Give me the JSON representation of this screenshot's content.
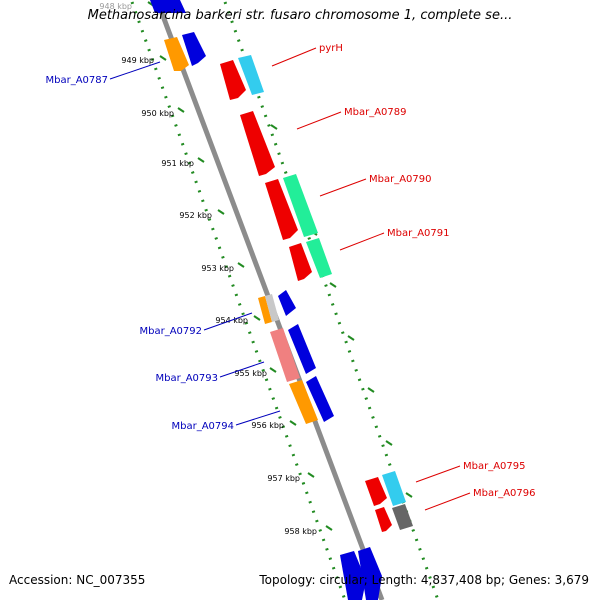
{
  "title": "Methanosarcina barkeri str. fusaro chromosome 1, complete se...",
  "footer": {
    "accession": "Accession: NC_007355",
    "summary": "Topology: circular; Length: 4,837,408 bp; Genes: 3,679"
  },
  "colors": {
    "backbone": "#8c8c8c",
    "ticks": "#228b22",
    "left_labels": "#0000bb",
    "right_labels": "#dd0000",
    "red_gene": "#ee0000",
    "blue_gene": "#0000dd",
    "cyan_gene": "#33ccee",
    "green_gene": "#22ee99",
    "orange_gene": "#ff9900",
    "pink_gene": "#f08080",
    "gray_gene": "#666666"
  },
  "kbp_ticks": [
    "948 kbp",
    "949 kbp",
    "950 kbp",
    "951 kbp",
    "952 kbp",
    "953 kbp",
    "954 kbp",
    "955 kbp",
    "956 kbp",
    "957 kbp",
    "958 kbp"
  ],
  "gene_labels_left": [
    "Mbar_A0787",
    "Mbar_A0792",
    "Mbar_A0793",
    "Mbar_A0794"
  ],
  "gene_labels_right": [
    "pyrH",
    "Mbar_A0789",
    "Mbar_A0790",
    "Mbar_A0791",
    "Mbar_A0795",
    "Mbar_A0796"
  ]
}
